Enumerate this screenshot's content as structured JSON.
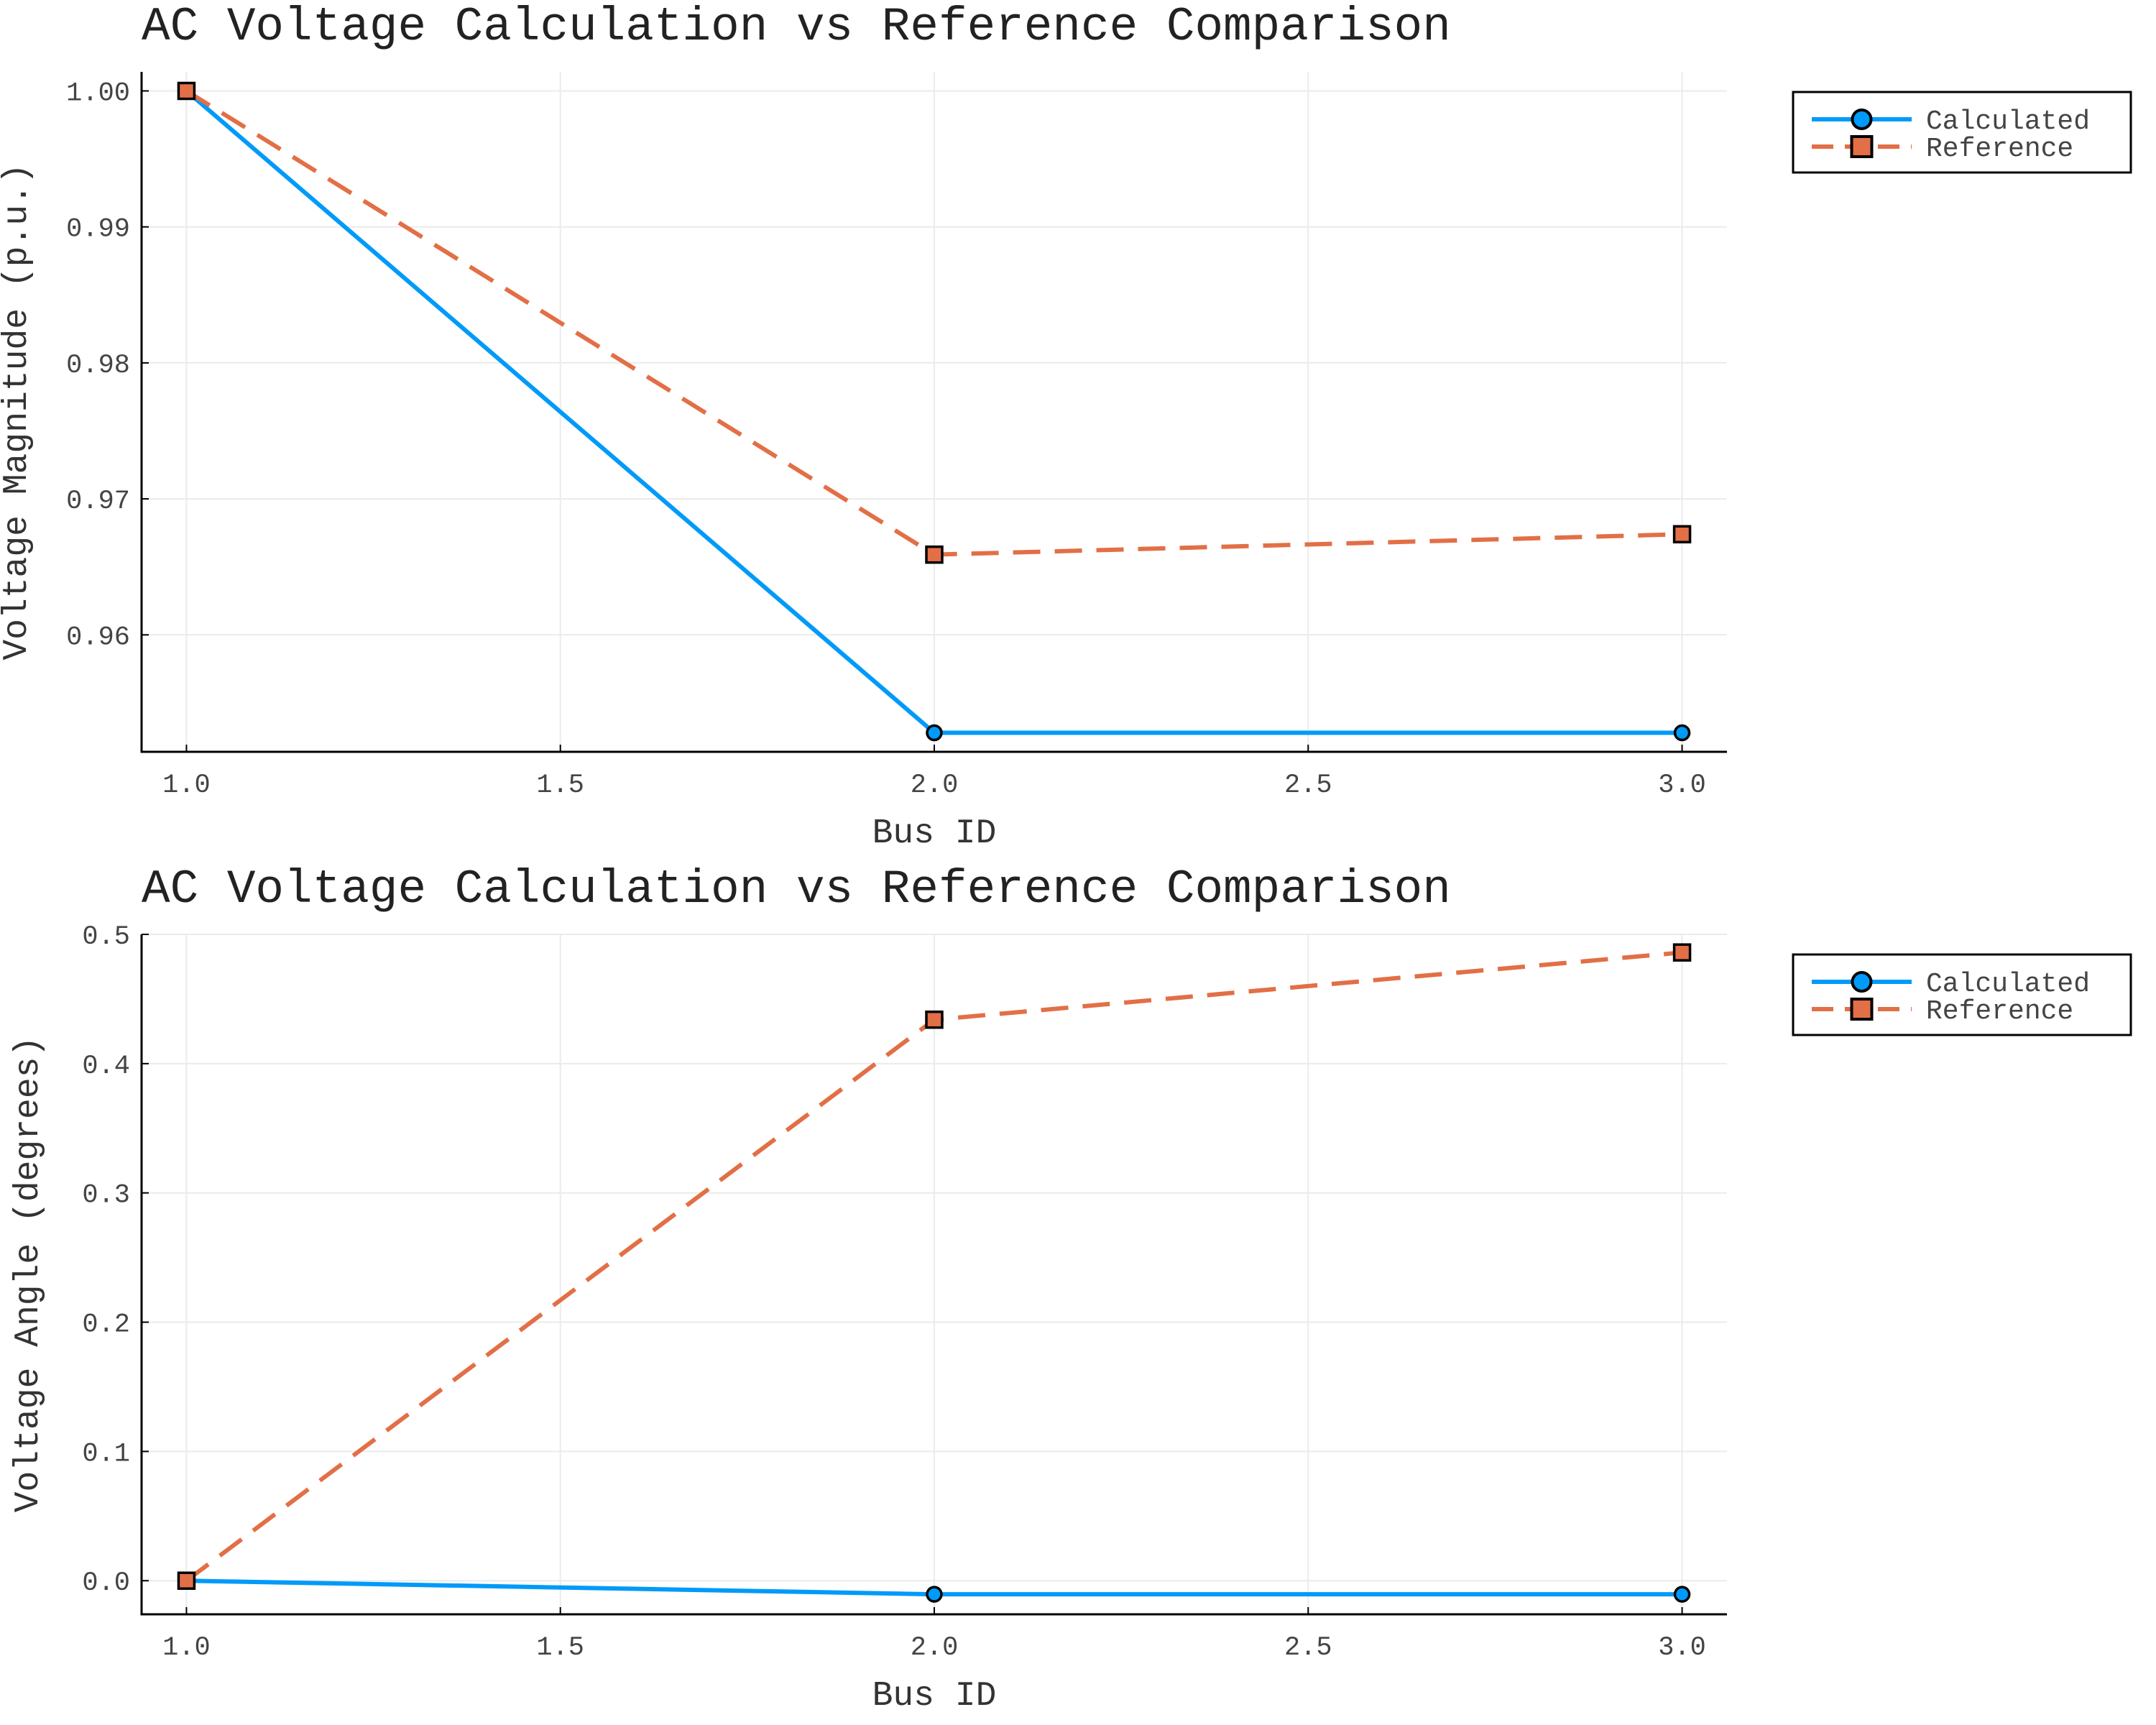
{
  "chart_data": [
    {
      "type": "line",
      "title": "AC Voltage Calculation vs Reference Comparison",
      "xlabel": "Bus ID",
      "ylabel": "Voltage Magnitude (p.u.)",
      "x": [
        1.0,
        2.0,
        3.0
      ],
      "xlim": [
        0.94,
        3.06
      ],
      "ylim": [
        0.9514,
        1.0014
      ],
      "xticks": [
        "1.0",
        "1.5",
        "2.0",
        "2.5",
        "3.0"
      ],
      "yticks": [
        "0.96",
        "0.97",
        "0.98",
        "0.99",
        "1.00"
      ],
      "grid": true,
      "legend_position": "outer top-right",
      "series": [
        {
          "name": "Calculated",
          "values": [
            1.0,
            0.9528,
            0.9528
          ],
          "color": "#009af9",
          "line": "solid",
          "marker": "circle"
        },
        {
          "name": "Reference",
          "values": [
            1.0,
            0.9659,
            0.9674
          ],
          "color": "#e26f46",
          "line": "dashed",
          "marker": "square"
        }
      ]
    },
    {
      "type": "line",
      "title": "AC Voltage Calculation vs Reference Comparison",
      "xlabel": "Bus ID",
      "ylabel": "Voltage Angle (degrees)",
      "x": [
        1.0,
        2.0,
        3.0
      ],
      "xlim": [
        0.94,
        3.06
      ],
      "ylim": [
        -0.026,
        0.5
      ],
      "xticks": [
        "1.0",
        "1.5",
        "2.0",
        "2.5",
        "3.0"
      ],
      "yticks": [
        "0.0",
        "0.1",
        "0.2",
        "0.3",
        "0.4",
        "0.5"
      ],
      "grid": true,
      "legend_position": "outer top-right",
      "series": [
        {
          "name": "Calculated",
          "values": [
            0.0,
            -0.0105,
            -0.0105
          ],
          "color": "#009af9",
          "line": "solid",
          "marker": "circle"
        },
        {
          "name": "Reference",
          "values": [
            0.0,
            0.434,
            0.486
          ],
          "color": "#e26f46",
          "line": "dashed",
          "marker": "square"
        }
      ]
    }
  ]
}
